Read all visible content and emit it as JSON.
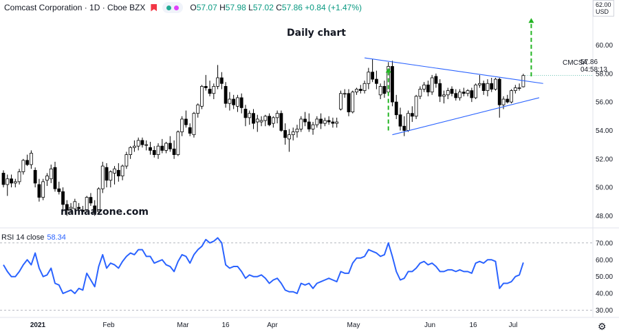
{
  "header": {
    "symbol": "Comcast Corporation · 1D · Cboe BZX",
    "o_label": "O",
    "o": "57.07",
    "h_label": "H",
    "h": "57.98",
    "l_label": "L",
    "l": "57.02",
    "c_label": "C",
    "c": "57.86",
    "change": "+0.84 (+1.47%)"
  },
  "title_text": "Daily chart",
  "watermark": "namaazone.com",
  "rsi_label": "RSI 14 close",
  "rsi_value": "58.34",
  "last_price": {
    "ticker": "CMCSA",
    "price": "57.86",
    "countdown": "04:58:13"
  },
  "currency": "USD",
  "top_tick_partial": "62.00",
  "colors": {
    "up": "#ffffff",
    "down": "#000000",
    "rsi": "#2962ff",
    "trend": "#2962ff",
    "arrow": "#22b422"
  },
  "chart_data": [
    {
      "type": "candlestick",
      "y_ticks": [
        48.0,
        50.0,
        52.0,
        54.0,
        56.0,
        58.0,
        60.0
      ],
      "ylim": [
        47.2,
        62.2
      ],
      "x_labels": [
        "2021",
        "Feb",
        "Mar",
        "16",
        "Apr",
        "May",
        "Jun",
        "16",
        "Jul"
      ],
      "candles": [
        [
          51.0,
          51.2,
          50.0,
          50.2
        ],
        [
          50.2,
          50.9,
          49.4,
          50.6
        ],
        [
          50.6,
          50.9,
          50.0,
          50.3
        ],
        [
          50.3,
          50.6,
          50.0,
          50.4
        ],
        [
          50.4,
          51.3,
          50.2,
          51.1
        ],
        [
          51.1,
          52.0,
          50.9,
          51.9
        ],
        [
          51.9,
          52.3,
          51.5,
          51.6
        ],
        [
          51.6,
          52.6,
          51.3,
          52.4
        ],
        [
          51.2,
          51.4,
          50.0,
          50.3
        ],
        [
          50.2,
          50.6,
          49.0,
          49.3
        ],
        [
          49.3,
          50.6,
          49.1,
          50.4
        ],
        [
          50.5,
          51.0,
          50.1,
          50.8
        ],
        [
          50.6,
          51.6,
          50.3,
          51.3
        ],
        [
          51.4,
          51.8,
          49.7,
          49.9
        ],
        [
          49.9,
          50.4,
          49.5,
          49.7
        ],
        [
          49.7,
          50.0,
          48.3,
          48.8
        ],
        [
          48.8,
          49.1,
          48.0,
          48.4
        ],
        [
          48.5,
          48.9,
          48.2,
          48.6
        ],
        [
          48.5,
          49.2,
          48.3,
          49.0
        ],
        [
          48.6,
          48.9,
          48.2,
          48.5
        ],
        [
          48.4,
          48.7,
          48.1,
          48.3
        ],
        [
          48.4,
          49.4,
          48.3,
          49.3
        ],
        [
          49.3,
          49.6,
          48.7,
          48.9
        ],
        [
          48.7,
          49.1,
          48.0,
          48.2
        ],
        [
          48.3,
          50.0,
          48.2,
          49.9
        ],
        [
          49.9,
          51.8,
          49.6,
          51.5
        ],
        [
          51.4,
          51.7,
          50.0,
          50.5
        ],
        [
          50.5,
          51.2,
          50.0,
          51.1
        ],
        [
          51.0,
          51.5,
          50.2,
          51.3
        ],
        [
          51.2,
          51.7,
          50.4,
          50.8
        ],
        [
          50.8,
          51.6,
          50.5,
          51.5
        ],
        [
          51.5,
          52.5,
          51.3,
          52.3
        ],
        [
          52.3,
          52.9,
          52.0,
          52.8
        ],
        [
          52.8,
          53.3,
          52.5,
          52.9
        ],
        [
          52.9,
          53.5,
          52.6,
          53.3
        ],
        [
          53.3,
          53.5,
          52.8,
          53.0
        ],
        [
          53.0,
          53.3,
          52.6,
          53.0
        ],
        [
          52.8,
          53.2,
          52.3,
          52.6
        ],
        [
          52.6,
          52.9,
          52.1,
          52.3
        ],
        [
          52.3,
          53.1,
          52.0,
          52.9
        ],
        [
          52.9,
          53.4,
          52.4,
          52.6
        ],
        [
          52.6,
          53.2,
          52.4,
          53.1
        ],
        [
          53.1,
          53.6,
          52.5,
          52.7
        ],
        [
          52.7,
          53.3,
          52.0,
          52.3
        ],
        [
          52.3,
          54.0,
          52.2,
          53.9
        ],
        [
          53.9,
          55.0,
          53.6,
          54.8
        ],
        [
          54.8,
          55.4,
          54.2,
          54.4
        ],
        [
          54.2,
          54.5,
          53.6,
          53.8
        ],
        [
          53.7,
          55.3,
          53.5,
          55.2
        ],
        [
          55.2,
          55.9,
          54.9,
          55.8
        ],
        [
          55.7,
          57.2,
          55.5,
          57.1
        ],
        [
          57.1,
          57.9,
          56.8,
          57.0
        ],
        [
          56.9,
          57.5,
          56.4,
          56.6
        ],
        [
          56.6,
          57.3,
          56.2,
          57.1
        ],
        [
          57.1,
          58.6,
          56.9,
          57.7
        ],
        [
          57.7,
          58.1,
          56.9,
          57.3
        ],
        [
          57.1,
          57.4,
          55.6,
          55.9
        ],
        [
          55.9,
          56.7,
          55.4,
          56.2
        ],
        [
          56.2,
          56.5,
          55.5,
          55.8
        ],
        [
          55.7,
          56.5,
          55.3,
          56.3
        ],
        [
          56.3,
          56.6,
          55.2,
          55.6
        ],
        [
          55.5,
          55.8,
          54.3,
          54.9
        ],
        [
          54.9,
          55.4,
          54.4,
          55.2
        ],
        [
          55.2,
          55.5,
          54.1,
          54.5
        ],
        [
          54.6,
          55.1,
          53.9,
          54.8
        ],
        [
          54.6,
          55.0,
          54.3,
          54.7
        ],
        [
          54.7,
          55.1,
          54.3,
          55.0
        ],
        [
          55.0,
          55.2,
          54.3,
          54.4
        ],
        [
          54.5,
          55.0,
          54.2,
          54.9
        ],
        [
          54.9,
          55.4,
          54.5,
          55.2
        ],
        [
          55.2,
          55.4,
          53.9,
          54.0
        ],
        [
          54.0,
          54.5,
          53.0,
          53.5
        ],
        [
          53.4,
          54.1,
          52.5,
          53.7
        ],
        [
          53.7,
          54.2,
          53.3,
          53.9
        ],
        [
          53.9,
          54.4,
          53.5,
          54.1
        ],
        [
          54.1,
          55.0,
          53.9,
          54.8
        ],
        [
          54.8,
          55.3,
          54.3,
          54.6
        ],
        [
          54.6,
          55.2,
          53.9,
          54.1
        ],
        [
          54.1,
          54.6,
          53.7,
          54.4
        ],
        [
          54.4,
          55.0,
          54.2,
          54.8
        ],
        [
          54.8,
          55.2,
          54.1,
          54.5
        ],
        [
          54.5,
          54.9,
          54.3,
          54.7
        ],
        [
          54.7,
          55.0,
          54.4,
          54.6
        ],
        [
          54.6,
          54.9,
          54.2,
          54.5
        ],
        [
          54.5,
          54.9,
          54.2,
          54.6
        ],
        [
          55.5,
          56.8,
          55.4,
          56.6
        ],
        [
          56.6,
          56.9,
          56.3,
          56.6
        ],
        [
          56.6,
          56.9,
          55.0,
          55.3
        ],
        [
          55.3,
          56.8,
          55.2,
          56.7
        ],
        [
          56.7,
          57.0,
          56.5,
          56.9
        ],
        [
          56.9,
          57.2,
          56.6,
          56.8
        ],
        [
          56.8,
          57.5,
          56.6,
          57.3
        ],
        [
          57.3,
          58.4,
          56.9,
          58.1
        ],
        [
          58.1,
          59.0,
          57.4,
          57.6
        ],
        [
          57.6,
          58.2,
          56.9,
          57.3
        ],
        [
          56.5,
          57.3,
          56.2,
          57.1
        ],
        [
          57.1,
          57.5,
          56.3,
          56.6
        ],
        [
          56.7,
          58.8,
          56.5,
          58.5
        ],
        [
          58.5,
          58.9,
          55.7,
          56.0
        ],
        [
          56.0,
          56.5,
          54.8,
          55.1
        ],
        [
          55.1,
          55.6,
          54.0,
          54.3
        ],
        [
          54.3,
          55.0,
          53.6,
          54.0
        ],
        [
          54.0,
          55.4,
          53.9,
          55.2
        ],
        [
          55.2,
          55.7,
          54.6,
          55.0
        ],
        [
          55.0,
          56.5,
          54.8,
          56.4
        ],
        [
          56.4,
          57.1,
          56.2,
          56.9
        ],
        [
          56.9,
          57.4,
          56.7,
          57.2
        ],
        [
          57.2,
          57.5,
          56.4,
          56.7
        ],
        [
          56.7,
          57.9,
          56.5,
          57.7
        ],
        [
          57.8,
          58.0,
          57.0,
          57.3
        ],
        [
          57.3,
          57.6,
          56.0,
          56.4
        ],
        [
          56.4,
          56.8,
          55.9,
          56.5
        ],
        [
          56.5,
          57.0,
          56.2,
          56.8
        ],
        [
          56.9,
          57.1,
          56.4,
          56.6
        ],
        [
          56.6,
          56.9,
          56.1,
          56.3
        ],
        [
          56.3,
          56.9,
          56.1,
          56.7
        ],
        [
          56.7,
          57.0,
          56.4,
          56.6
        ],
        [
          56.6,
          56.9,
          56.4,
          56.8
        ],
        [
          56.8,
          57.0,
          56.0,
          56.3
        ],
        [
          56.3,
          57.3,
          56.2,
          57.2
        ],
        [
          57.2,
          57.9,
          57.0,
          57.3
        ],
        [
          57.3,
          57.5,
          56.5,
          56.8
        ],
        [
          56.8,
          57.6,
          56.4,
          57.3
        ],
        [
          57.3,
          57.7,
          56.7,
          56.9
        ],
        [
          56.9,
          57.7,
          56.8,
          57.6
        ],
        [
          57.6,
          57.7,
          54.9,
          55.8
        ],
        [
          55.8,
          56.4,
          55.5,
          56.2
        ],
        [
          56.2,
          56.5,
          55.9,
          56.0
        ],
        [
          56.0,
          56.9,
          55.9,
          56.8
        ],
        [
          56.8,
          57.2,
          56.6,
          57.0
        ],
        [
          57.0,
          57.3,
          56.8,
          57.0
        ],
        [
          57.07,
          57.98,
          57.02,
          57.86
        ]
      ]
    },
    {
      "type": "line",
      "name": "RSI 14 close",
      "y_ticks": [
        30.0,
        40.0,
        50.0,
        60.0,
        70.0
      ],
      "ylim": [
        27,
        74
      ],
      "values": [
        57,
        53,
        50,
        50,
        53,
        57,
        60,
        57,
        64,
        55,
        50,
        51,
        55,
        46,
        45,
        40,
        41,
        42,
        40,
        43,
        42,
        52,
        48,
        44,
        56,
        63,
        55,
        58,
        57,
        55,
        59,
        62,
        64,
        63,
        66,
        66,
        62,
        62,
        58,
        59,
        60,
        57,
        56,
        53,
        59,
        63,
        62,
        58,
        63,
        66,
        68,
        72,
        70,
        71,
        73,
        70,
        57,
        55,
        56,
        56,
        53,
        49,
        51,
        50,
        50,
        51,
        49,
        46,
        48,
        49,
        46,
        42,
        41,
        41,
        40,
        46,
        45,
        46,
        43,
        46,
        47,
        48,
        49,
        48,
        47,
        53,
        52,
        52,
        58,
        61,
        61,
        62,
        66,
        65,
        64,
        62,
        63,
        70,
        62,
        53,
        48,
        49,
        53,
        53,
        55,
        58,
        59,
        57,
        58,
        56,
        53,
        53,
        54,
        54,
        53,
        54,
        53,
        53,
        52,
        58,
        59,
        58,
        60,
        60,
        59,
        43,
        46,
        46,
        47,
        50,
        51,
        58.34
      ]
    }
  ]
}
